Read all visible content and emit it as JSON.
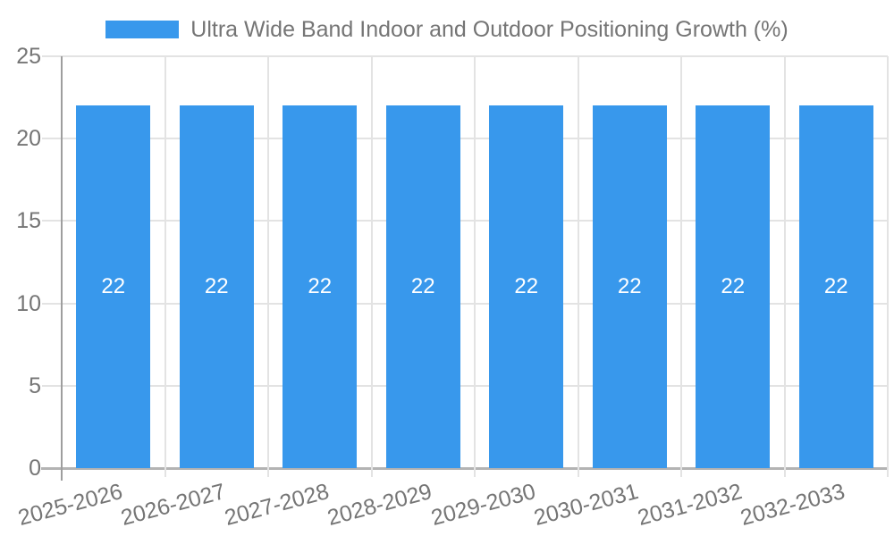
{
  "chart_data": {
    "type": "bar",
    "categories": [
      "2025-2026",
      "2026-2027",
      "2027-2028",
      "2028-2029",
      "2029-2030",
      "2030-2031",
      "2031-2032",
      "2032-2033"
    ],
    "series": [
      {
        "name": "Ultra Wide Band Indoor and Outdoor Positioning Growth (%)",
        "values": [
          22,
          22,
          22,
          22,
          22,
          22,
          22,
          22
        ]
      }
    ],
    "value_labels": [
      "22",
      "22",
      "22",
      "22",
      "22",
      "22",
      "22",
      "22"
    ],
    "ylim": [
      0,
      25
    ],
    "yticks": [
      0,
      5,
      10,
      15,
      20,
      25
    ],
    "grid": true,
    "legend_position": "top",
    "value_label_position": "center-of-bar",
    "x_label_rotation_deg": -15,
    "colors": {
      "bar": "#3898EC",
      "value_label": "#FFFFFF",
      "text": "#757575",
      "gridline": "#E3E3E3",
      "axis_line": "#9E9E9E",
      "baseline": "#B3B3B3",
      "background": "#FFFFFF"
    }
  }
}
